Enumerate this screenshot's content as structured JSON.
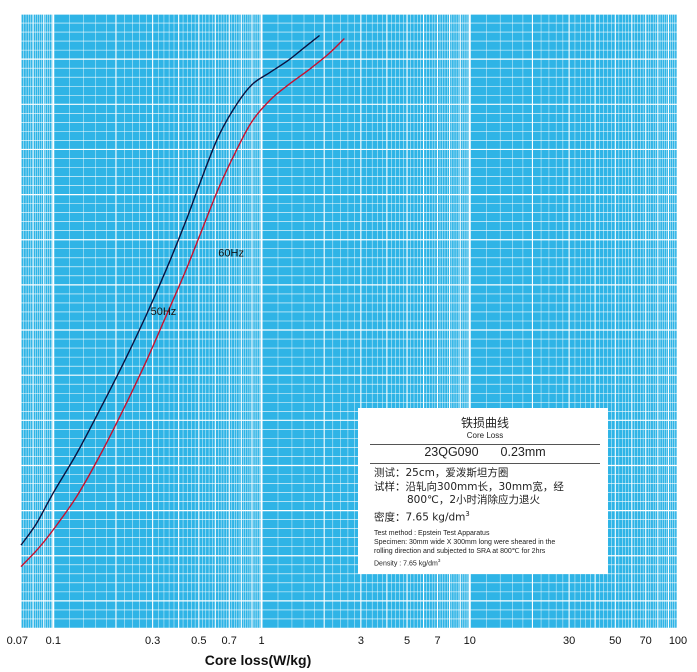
{
  "chart_data": {
    "type": "line",
    "xlabel": "Core loss(W/kg)",
    "xscale": "log",
    "xlim": [
      0.07,
      100
    ],
    "xticks": [
      {
        "value": 0.07,
        "label": "0.07"
      },
      {
        "value": 0.1,
        "label": "0.1"
      },
      {
        "value": 0.3,
        "label": "0.3"
      },
      {
        "value": 0.5,
        "label": "0.5"
      },
      {
        "value": 0.7,
        "label": "0.7"
      },
      {
        "value": 1,
        "label": "1"
      },
      {
        "value": 3,
        "label": "3"
      },
      {
        "value": 5,
        "label": "5"
      },
      {
        "value": 7,
        "label": "7"
      },
      {
        "value": 10,
        "label": "10"
      },
      {
        "value": 30,
        "label": "30"
      },
      {
        "value": 50,
        "label": "50"
      },
      {
        "value": 70,
        "label": "70"
      },
      {
        "value": 100,
        "label": "100"
      }
    ],
    "ylim": [
      0,
      1
    ],
    "grid": true,
    "series": [
      {
        "name": "50Hz",
        "color": "#0a1240",
        "x": [
          0.07,
          0.083,
          0.1,
          0.13,
          0.17,
          0.22,
          0.28,
          0.35,
          0.43,
          0.52,
          0.62,
          0.75,
          0.9,
          1.1,
          1.35,
          1.6,
          1.9
        ],
        "y": [
          0.135,
          0.17,
          0.22,
          0.285,
          0.36,
          0.435,
          0.51,
          0.585,
          0.66,
          0.735,
          0.8,
          0.85,
          0.885,
          0.905,
          0.925,
          0.945,
          0.965
        ]
      },
      {
        "name": "60Hz",
        "color": "#c8102e",
        "x": [
          0.07,
          0.085,
          0.1,
          0.13,
          0.17,
          0.22,
          0.28,
          0.35,
          0.43,
          0.52,
          0.62,
          0.75,
          0.9,
          1.1,
          1.35,
          1.7,
          2.1,
          2.5
        ],
        "y": [
          0.1,
          0.13,
          0.16,
          0.215,
          0.285,
          0.36,
          0.435,
          0.51,
          0.58,
          0.65,
          0.715,
          0.775,
          0.825,
          0.86,
          0.885,
          0.91,
          0.935,
          0.96
        ]
      }
    ]
  },
  "info": {
    "title_cn": "铁损曲线",
    "title_en": "Core Loss",
    "grade": "23QG090",
    "thickness": "0.23mm",
    "test_cn": "测试：25cm，爱泼斯坦方圈",
    "sample_cn_1": "试样：沿轧向300mm长，30mm宽，经",
    "sample_cn_2": "800℃，2小时消除应力退火",
    "density_cn_label": "密度：7.65 kg/dm",
    "test_en": "Test method : Epstein Test Apparatus",
    "specimen_en_1": "Specimen: 30mm wide X 300mm long were sheared in the",
    "specimen_en_2": "rolling direction and subjected to SRA at 800℃ for 2hrs",
    "density_en_label": "Density : 7.65 kg/dm",
    "density_unit_sup": "3"
  }
}
